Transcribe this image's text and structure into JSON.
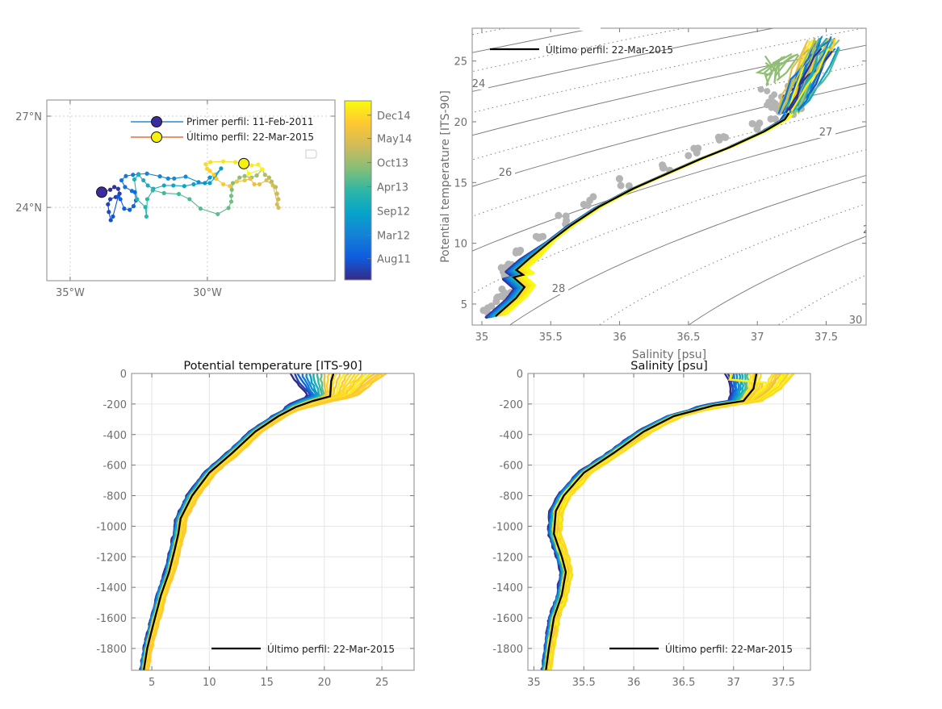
{
  "chart_data": [
    {
      "type": "line",
      "panel": "map",
      "xlim": [
        -35.85,
        -25.35
      ],
      "ylim": [
        21.59,
        27.53
      ],
      "xticks": [
        -35,
        -30
      ],
      "xtick_labels": [
        "35°W",
        "30°W"
      ],
      "yticks": [
        27,
        24
      ],
      "ytick_labels": [
        "27°N",
        "24°N"
      ],
      "grid": true,
      "legend": [
        {
          "label": "Primer perfil: 11-Feb-2011",
          "line_color": "#0072bd",
          "marker_color": "#3a2c9e"
        },
        {
          "label": "Último perfil: 22-Mar-2015",
          "line_color": "#d95319",
          "marker_color": "#f5f00e"
        }
      ],
      "legend_position": "top-right",
      "colorbar": {
        "colormap": [
          "#352a87",
          "#0f5cdd",
          "#1481d6",
          "#06a4ca",
          "#2eb7a4",
          "#87bf77",
          "#d1bb59",
          "#fec832",
          "#f9fb0e"
        ],
        "tick_labels": [
          "Dec14",
          "May14",
          "Oct13",
          "Apr13",
          "Sep12",
          "Mar12",
          "Aug11"
        ],
        "tick_positions": [
          0.92,
          0.79,
          0.655,
          0.52,
          0.385,
          0.25,
          0.12
        ]
      },
      "first_profile": [
        -33.85,
        24.5
      ],
      "last_profile": [
        -28.67,
        25.44
      ],
      "track": [
        [
          -33.85,
          24.5
        ],
        [
          -33.54,
          24.58
        ],
        [
          -33.39,
          24.67
        ],
        [
          -33.25,
          24.61
        ],
        [
          -33.2,
          24.45
        ],
        [
          -33.34,
          24.34
        ],
        [
          -33.54,
          24.27
        ],
        [
          -33.62,
          24.1
        ],
        [
          -33.59,
          23.85
        ],
        [
          -33.52,
          23.58
        ],
        [
          -33.44,
          23.7
        ],
        [
          -33.25,
          24.36
        ],
        [
          -33.17,
          24.27
        ],
        [
          -33.03,
          23.96
        ],
        [
          -32.83,
          23.92
        ],
        [
          -32.69,
          24.04
        ],
        [
          -32.6,
          24.23
        ],
        [
          -32.64,
          24.5
        ],
        [
          -32.75,
          24.54
        ],
        [
          -33.0,
          24.67
        ],
        [
          -33.13,
          24.89
        ],
        [
          -32.97,
          25.03
        ],
        [
          -32.71,
          25.07
        ],
        [
          -32.51,
          25.09
        ],
        [
          -32.2,
          25.11
        ],
        [
          -31.73,
          25.02
        ],
        [
          -31.43,
          24.95
        ],
        [
          -31.21,
          24.95
        ],
        [
          -30.79,
          25.01
        ],
        [
          -30.32,
          24.83
        ],
        [
          -30.09,
          24.8
        ],
        [
          -29.91,
          24.98
        ],
        [
          -29.72,
          25.07
        ],
        [
          -29.5,
          25.28
        ],
        [
          -29.72,
          24.98
        ],
        [
          -29.91,
          24.8
        ],
        [
          -30.5,
          24.76
        ],
        [
          -30.84,
          24.7
        ],
        [
          -31.24,
          24.72
        ],
        [
          -31.58,
          24.72
        ],
        [
          -31.97,
          24.61
        ],
        [
          -32.17,
          24.72
        ],
        [
          -32.33,
          24.89
        ],
        [
          -32.51,
          25.07
        ],
        [
          -32.66,
          24.92
        ],
        [
          -32.56,
          24.27
        ],
        [
          -32.26,
          24.01
        ],
        [
          -32.22,
          23.7
        ],
        [
          -32.19,
          24.27
        ],
        [
          -31.99,
          24.56
        ],
        [
          -31.58,
          24.47
        ],
        [
          -31.04,
          24.44
        ],
        [
          -30.65,
          24.27
        ],
        [
          -30.25,
          23.96
        ],
        [
          -29.62,
          23.78
        ],
        [
          -29.23,
          23.98
        ],
        [
          -29.13,
          24.19
        ],
        [
          -29.13,
          24.38
        ],
        [
          -29.11,
          24.58
        ],
        [
          -29.07,
          24.8
        ],
        [
          -28.93,
          24.85
        ],
        [
          -28.83,
          24.98
        ],
        [
          -28.64,
          25.03
        ],
        [
          -28.39,
          24.98
        ],
        [
          -28.2,
          25.05
        ],
        [
          -28.0,
          25.25
        ],
        [
          -27.9,
          25.07
        ],
        [
          -27.75,
          24.98
        ],
        [
          -27.66,
          24.85
        ],
        [
          -27.51,
          24.67
        ],
        [
          -27.46,
          24.45
        ],
        [
          -27.41,
          24.27
        ],
        [
          -27.46,
          24.1
        ],
        [
          -27.41,
          23.99
        ],
        [
          -27.61,
          24.72
        ],
        [
          -27.85,
          24.89
        ],
        [
          -28.1,
          24.76
        ],
        [
          -28.29,
          24.76
        ],
        [
          -28.44,
          24.94
        ],
        [
          -28.64,
          24.89
        ],
        [
          -28.93,
          24.85
        ],
        [
          -29.18,
          24.7
        ],
        [
          -29.42,
          24.76
        ],
        [
          -29.67,
          24.94
        ],
        [
          -29.76,
          25.07
        ],
        [
          -29.91,
          25.2
        ],
        [
          -30.01,
          25.27
        ],
        [
          -30.06,
          25.42
        ],
        [
          -29.89,
          25.49
        ],
        [
          -29.42,
          25.51
        ],
        [
          -28.98,
          25.49
        ],
        [
          -28.39,
          25.38
        ],
        [
          -28.15,
          25.41
        ],
        [
          -28.0,
          25.25
        ],
        [
          -28.49,
          25.11
        ],
        [
          -28.67,
          25.44
        ]
      ]
    },
    {
      "type": "line",
      "panel": "ts-diagram",
      "xlabel": "Salinity [psu]",
      "ylabel": "Potential temperature [ITS-90]",
      "xlim": [
        34.93,
        37.79
      ],
      "ylim": [
        3.27,
        27.7
      ],
      "xticks": [
        35,
        35.5,
        36,
        36.5,
        37,
        37.5
      ],
      "xtick_labels": [
        "35",
        "35.5",
        "36",
        "36.5",
        "37",
        "37.5"
      ],
      "yticks": [
        5,
        10,
        15,
        20,
        25
      ],
      "ytick_labels": [
        "5",
        "10",
        "15",
        "20",
        "25"
      ],
      "density_contours": {
        "solid_levels": [
          22,
          23,
          24,
          25,
          26,
          27,
          28,
          29,
          30
        ],
        "dotted_levels": [
          22.5,
          23.5,
          24.5,
          25.5,
          26.5,
          27.5,
          28.5,
          29.5
        ],
        "labels": [
          "24",
          "26",
          "27",
          "28",
          "2",
          "30"
        ],
        "color": "#7f7f7f"
      },
      "legend": [
        {
          "label": "Último perfil: 22-Mar-2015",
          "color": "#000000"
        }
      ],
      "legend_position": "top-left",
      "last_profile": {
        "S": [
          35.1,
          35.2,
          35.25,
          35.31,
          35.27,
          35.23,
          35.3,
          35.25,
          35.35,
          35.5,
          35.65,
          35.85,
          36.1,
          36.4,
          36.6,
          36.8,
          37.05,
          37.2,
          37.23
        ],
        "T": [
          4.0,
          5.0,
          5.5,
          6.4,
          6.8,
          7.2,
          7.4,
          7.8,
          8.8,
          10.2,
          11.5,
          13.0,
          14.5,
          16.0,
          17.0,
          17.9,
          19.2,
          20.2,
          20.7
        ]
      }
    },
    {
      "type": "line",
      "panel": "temperature-profile",
      "title": "Potential temperature [ITS-90]",
      "xlim": [
        3.24,
        27.8
      ],
      "ylim": [
        -1943,
        0
      ],
      "xticks": [
        5,
        10,
        15,
        20,
        25
      ],
      "xtick_labels": [
        "5",
        "10",
        "15",
        "20",
        "25"
      ],
      "yticks": [
        0,
        -200,
        -400,
        -600,
        -800,
        -1000,
        -1200,
        -1400,
        -1600,
        -1800
      ],
      "ytick_labels": [
        "0",
        "-200",
        "-400",
        "-600",
        "-800",
        "-1000",
        "-1200",
        "-1400",
        "-1600",
        "-1800"
      ],
      "grid": true,
      "legend": [
        {
          "label": "Último perfil: 22-Mar-2015",
          "color": "#000000"
        }
      ],
      "legend_position": "bottom-right",
      "last_profile": {
        "x": [
          20.8,
          20.6,
          20.5,
          19.0,
          17.5,
          16.0,
          14.0,
          12.0,
          10.0,
          8.5,
          7.5,
          7.3,
          7.0,
          6.5,
          5.8,
          5.1,
          4.6,
          4.3
        ],
        "depth": [
          0,
          -50,
          -150,
          -180,
          -220,
          -280,
          -380,
          -520,
          -650,
          -800,
          -950,
          -1050,
          -1150,
          -1300,
          -1450,
          -1650,
          -1800,
          -1943
        ]
      }
    },
    {
      "type": "line",
      "panel": "salinity-profile",
      "title": "Salinity [psu]",
      "xlim": [
        34.94,
        37.77
      ],
      "ylim": [
        -1943,
        0
      ],
      "xticks": [
        35,
        35.5,
        36,
        36.5,
        37,
        37.5
      ],
      "xtick_labels": [
        "35",
        "35.5",
        "36",
        "36.5",
        "37",
        "37.5"
      ],
      "yticks": [
        0,
        -200,
        -400,
        -600,
        -800,
        -1000,
        -1200,
        -1400,
        -1600,
        -1800
      ],
      "ytick_labels": [
        "0",
        "-200",
        "-400",
        "-600",
        "-800",
        "-1000",
        "-1200",
        "-1400",
        "-1600",
        "-1800"
      ],
      "grid": true,
      "legend": [
        {
          "label": "Último perfil: 22-Mar-2015",
          "color": "#000000"
        }
      ],
      "legend_position": "bottom-right",
      "last_profile": {
        "x": [
          37.23,
          37.2,
          37.1,
          36.8,
          36.4,
          36.1,
          35.8,
          35.5,
          35.3,
          35.22,
          35.2,
          35.28,
          35.32,
          35.28,
          35.2,
          35.15,
          35.12
        ],
        "depth": [
          0,
          -100,
          -180,
          -210,
          -280,
          -380,
          -520,
          -650,
          -800,
          -900,
          -1050,
          -1200,
          -1300,
          -1450,
          -1600,
          -1800,
          -1943
        ]
      }
    }
  ]
}
